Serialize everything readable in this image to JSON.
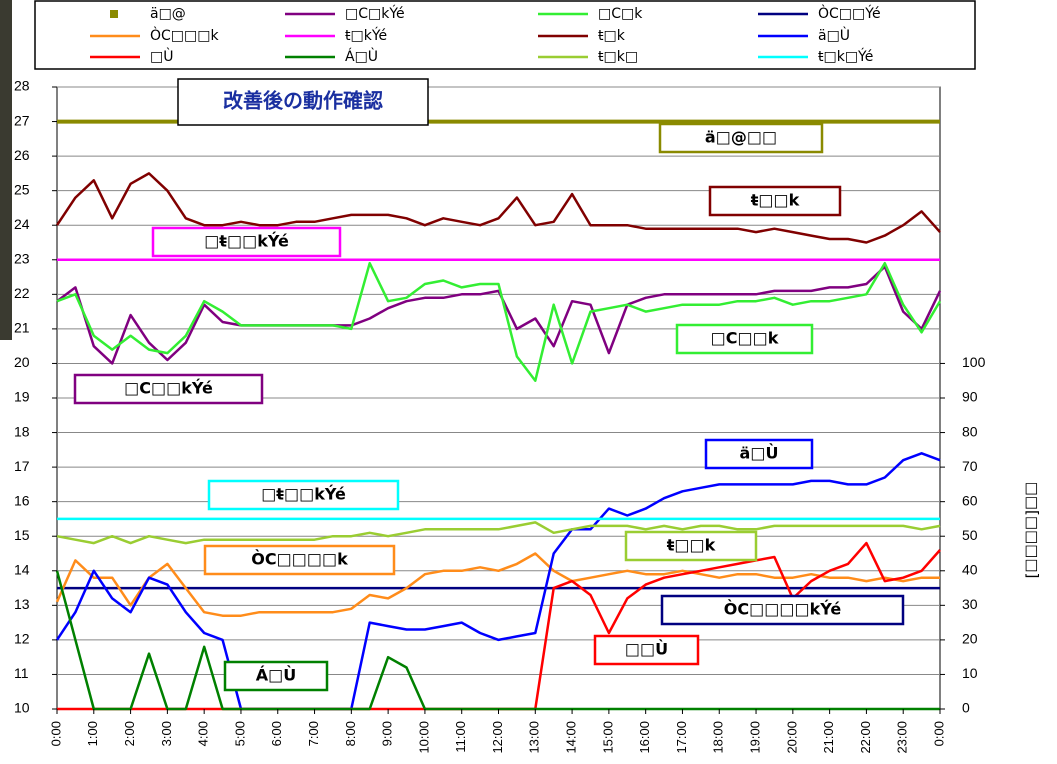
{
  "chart_data": {
    "type": "line",
    "title": "改善後の動作確認",
    "y2_label": "□□[□□□□]",
    "x": [
      0,
      0.5,
      1,
      1.5,
      2,
      2.5,
      3,
      3.5,
      4,
      4.5,
      5,
      5.5,
      6,
      6.5,
      7,
      7.5,
      8,
      8.5,
      9,
      9.5,
      10,
      10.5,
      11,
      11.5,
      12,
      12.5,
      13,
      13.5,
      14,
      14.5,
      15,
      15.5,
      16,
      16.5,
      17,
      17.5,
      18,
      18.5,
      19,
      19.5,
      20,
      20.5,
      21,
      21.5,
      22,
      22.5,
      23,
      23.5,
      24
    ],
    "xlim": [
      0,
      24
    ],
    "xticks": [
      {
        "value": 0,
        "label": "0:00"
      },
      {
        "value": 1,
        "label": "1:00"
      },
      {
        "value": 2,
        "label": "2:00"
      },
      {
        "value": 3,
        "label": "3:00"
      },
      {
        "value": 4,
        "label": "4:00"
      },
      {
        "value": 5,
        "label": "5:00"
      },
      {
        "value": 6,
        "label": "6:00"
      },
      {
        "value": 7,
        "label": "7:00"
      },
      {
        "value": 8,
        "label": "8:00"
      },
      {
        "value": 9,
        "label": "9:00"
      },
      {
        "value": 10,
        "label": "10:00"
      },
      {
        "value": 11,
        "label": "11:00"
      },
      {
        "value": 12,
        "label": "12:00"
      },
      {
        "value": 13,
        "label": "13:00"
      },
      {
        "value": 14,
        "label": "14:00"
      },
      {
        "value": 15,
        "label": "15:00"
      },
      {
        "value": 16,
        "label": "16:00"
      },
      {
        "value": 17,
        "label": "17:00"
      },
      {
        "value": 18,
        "label": "18:00"
      },
      {
        "value": 19,
        "label": "19:00"
      },
      {
        "value": 20,
        "label": "20:00"
      },
      {
        "value": 21,
        "label": "21:00"
      },
      {
        "value": 22,
        "label": "22:00"
      },
      {
        "value": 23,
        "label": "23:00"
      },
      {
        "value": 24,
        "label": "0:00"
      }
    ],
    "ylim": [
      10,
      28
    ],
    "yticks": [
      10,
      11,
      12,
      13,
      14,
      15,
      16,
      17,
      18,
      19,
      20,
      21,
      22,
      23,
      24,
      25,
      26,
      27,
      28
    ],
    "y2lim": [
      0,
      180
    ],
    "y2ticks": [
      0,
      10,
      20,
      30,
      40,
      50,
      60,
      70,
      80,
      90,
      100
    ],
    "grid": true,
    "series": [
      {
        "name": "ä□@",
        "color": "#8a8a00",
        "marker": "square",
        "values": [
          27,
          27,
          27,
          27,
          27,
          27,
          27,
          27,
          27,
          27,
          27,
          27,
          27,
          27,
          27,
          27,
          27,
          27,
          27,
          27,
          27,
          27,
          27,
          27,
          27,
          27,
          27,
          27,
          27,
          27,
          27,
          27,
          27,
          27,
          27,
          27,
          27,
          27,
          27,
          27,
          27,
          27,
          27,
          27,
          27,
          27,
          27,
          27,
          27
        ]
      },
      {
        "name": "□C□kÝé",
        "color": "#800080",
        "values": [
          21.8,
          22.2,
          20.5,
          20.0,
          21.4,
          20.6,
          20.1,
          20.6,
          21.7,
          21.2,
          21.1,
          21.1,
          21.1,
          21.1,
          21.1,
          21.1,
          21.1,
          21.3,
          21.6,
          21.8,
          21.9,
          21.9,
          22.0,
          22.0,
          22.1,
          21.0,
          21.3,
          20.5,
          21.8,
          21.7,
          20.3,
          21.7,
          21.9,
          22.0,
          22.0,
          22.0,
          22.0,
          22.0,
          22.0,
          22.1,
          22.1,
          22.1,
          22.2,
          22.2,
          22.3,
          22.8,
          21.5,
          21.0,
          22.1
        ]
      },
      {
        "name": "□C□k",
        "color": "#33ee33",
        "values": [
          21.8,
          22.0,
          20.8,
          20.4,
          20.8,
          20.4,
          20.3,
          20.8,
          21.8,
          21.5,
          21.1,
          21.1,
          21.1,
          21.1,
          21.1,
          21.1,
          21.0,
          22.9,
          21.8,
          21.9,
          22.3,
          22.4,
          22.2,
          22.3,
          22.3,
          20.2,
          19.5,
          21.7,
          20.0,
          21.5,
          21.6,
          21.7,
          21.5,
          21.6,
          21.7,
          21.7,
          21.7,
          21.8,
          21.8,
          21.9,
          21.7,
          21.8,
          21.8,
          21.9,
          22.0,
          22.9,
          21.7,
          20.9,
          21.8
        ]
      },
      {
        "name": "ÒC□□Ýé",
        "color": "#000080",
        "values": [
          13.5,
          13.5,
          13.5,
          13.5,
          13.5,
          13.5,
          13.5,
          13.5,
          13.5,
          13.5,
          13.5,
          13.5,
          13.5,
          13.5,
          13.5,
          13.5,
          13.5,
          13.5,
          13.5,
          13.5,
          13.5,
          13.5,
          13.5,
          13.5,
          13.5,
          13.5,
          13.5,
          13.5,
          13.5,
          13.5,
          13.5,
          13.5,
          13.5,
          13.5,
          13.5,
          13.5,
          13.5,
          13.5,
          13.5,
          13.5,
          13.5,
          13.5,
          13.5,
          13.5,
          13.5,
          13.5,
          13.5,
          13.5,
          13.5
        ]
      },
      {
        "name": "ÒC□□□k",
        "color": "#ff8c1a",
        "values": [
          13.1,
          14.3,
          13.8,
          13.8,
          13.0,
          13.8,
          14.2,
          13.5,
          12.8,
          12.7,
          12.7,
          12.8,
          12.8,
          12.8,
          12.8,
          12.8,
          12.9,
          13.3,
          13.2,
          13.5,
          13.9,
          14.0,
          14.0,
          14.1,
          14.0,
          14.2,
          14.5,
          14.0,
          13.7,
          13.8,
          13.9,
          14.0,
          13.9,
          13.9,
          14.0,
          13.9,
          13.8,
          13.9,
          13.9,
          13.8,
          13.8,
          13.9,
          13.8,
          13.8,
          13.7,
          13.8,
          13.7,
          13.8,
          13.8
        ]
      },
      {
        "name": "ŧ□kÝé",
        "color": "#ff00ff",
        "values": [
          23,
          23,
          23,
          23,
          23,
          23,
          23,
          23,
          23,
          23,
          23,
          23,
          23,
          23,
          23,
          23,
          23,
          23,
          23,
          23,
          23,
          23,
          23,
          23,
          23,
          23,
          23,
          23,
          23,
          23,
          23,
          23,
          23,
          23,
          23,
          23,
          23,
          23,
          23,
          23,
          23,
          23,
          23,
          23,
          23,
          23,
          23,
          23,
          23
        ]
      },
      {
        "name": "ŧ□k",
        "color": "#800000",
        "values": [
          24.0,
          24.8,
          25.3,
          24.2,
          25.2,
          25.5,
          25.0,
          24.2,
          24.0,
          24.0,
          24.1,
          24.0,
          24.0,
          24.1,
          24.1,
          24.2,
          24.3,
          24.3,
          24.3,
          24.2,
          24.0,
          24.2,
          24.1,
          24.0,
          24.2,
          24.8,
          24.0,
          24.1,
          24.9,
          24.0,
          24.0,
          24.0,
          23.9,
          23.9,
          23.9,
          23.9,
          23.9,
          23.9,
          23.8,
          23.9,
          23.8,
          23.7,
          23.6,
          23.6,
          23.5,
          23.7,
          24.0,
          24.4,
          23.8
        ]
      },
      {
        "name": "ä□Ù",
        "color": "#0000ff",
        "axis": "y2",
        "values": [
          20,
          28,
          40,
          32,
          28,
          38,
          36,
          28,
          22,
          20,
          0,
          0,
          0,
          0,
          0,
          0,
          0,
          25,
          24,
          23,
          23,
          24,
          25,
          22,
          20,
          21,
          22,
          45,
          52,
          52,
          58,
          56,
          58,
          61,
          63,
          64,
          65,
          65,
          65,
          65,
          65,
          66,
          66,
          65,
          65,
          67,
          72,
          74,
          72
        ]
      },
      {
        "name": "□Ù",
        "color": "#ff0000",
        "axis": "y2",
        "values": [
          0,
          0,
          0,
          0,
          0,
          0,
          0,
          0,
          0,
          0,
          0,
          0,
          0,
          0,
          0,
          0,
          0,
          0,
          0,
          0,
          0,
          0,
          0,
          0,
          0,
          0,
          0,
          35,
          37,
          33,
          22,
          32,
          36,
          38,
          39,
          40,
          41,
          42,
          43,
          44,
          32,
          37,
          40,
          42,
          48,
          37,
          38,
          40,
          46
        ]
      },
      {
        "name": "Á□Ù",
        "color": "#008000",
        "axis": "y2",
        "values": [
          40,
          20,
          0,
          0,
          0,
          16,
          0,
          0,
          18,
          0,
          0,
          0,
          0,
          0,
          0,
          0,
          0,
          0,
          15,
          12,
          0,
          0,
          0,
          0,
          0,
          0,
          0,
          0,
          0,
          0,
          0,
          0,
          0,
          0,
          0,
          0,
          0,
          0,
          0,
          0,
          0,
          0,
          0,
          0,
          0,
          0,
          0,
          0,
          0
        ]
      },
      {
        "name": "ŧ□k□",
        "color": "#9acd32",
        "values": [
          15.0,
          14.9,
          14.8,
          15.0,
          14.8,
          15.0,
          14.9,
          14.8,
          14.9,
          14.9,
          14.9,
          14.9,
          14.9,
          14.9,
          14.9,
          15.0,
          15.0,
          15.1,
          15.0,
          15.1,
          15.2,
          15.2,
          15.2,
          15.2,
          15.2,
          15.3,
          15.4,
          15.1,
          15.2,
          15.3,
          15.3,
          15.3,
          15.2,
          15.3,
          15.2,
          15.3,
          15.3,
          15.2,
          15.2,
          15.3,
          15.3,
          15.3,
          15.3,
          15.3,
          15.3,
          15.3,
          15.3,
          15.2,
          15.3
        ]
      },
      {
        "name": "ŧ□k□Ýé",
        "color": "#00ffff",
        "values": [
          15.5,
          15.5,
          15.5,
          15.5,
          15.5,
          15.5,
          15.5,
          15.5,
          15.5,
          15.5,
          15.5,
          15.5,
          15.5,
          15.5,
          15.5,
          15.5,
          15.5,
          15.5,
          15.5,
          15.5,
          15.5,
          15.5,
          15.5,
          15.5,
          15.5,
          15.5,
          15.5,
          15.5,
          15.5,
          15.5,
          15.5,
          15.5,
          15.5,
          15.5,
          15.5,
          15.5,
          15.5,
          15.5,
          15.5,
          15.5,
          15.5,
          15.5,
          15.5,
          15.5,
          15.5,
          15.5,
          15.5,
          15.5,
          15.5
        ]
      }
    ],
    "annotations": [
      {
        "text": "ä□@□□",
        "color": "#8a8a00"
      },
      {
        "text": "ŧ□□k",
        "color": "#800000"
      },
      {
        "text": "□ŧ□□kÝé",
        "color": "#ff00ff"
      },
      {
        "text": "□C□□k",
        "color": "#33ee33"
      },
      {
        "text": "□C□□kÝé",
        "color": "#800080"
      },
      {
        "text": "ä□Ù",
        "color": "#0000ff"
      },
      {
        "text": "□ŧ□□kÝé",
        "color": "#00ffff"
      },
      {
        "text": "ŧ□□k",
        "color": "#9acd32"
      },
      {
        "text": "ÒC□□□□k",
        "color": "#ff8c1a"
      },
      {
        "text": "ÒC□□□□kÝé",
        "color": "#000080"
      },
      {
        "text": "□□Ù",
        "color": "#ff0000"
      },
      {
        "text": "Á□Ù",
        "color": "#008000"
      }
    ]
  }
}
